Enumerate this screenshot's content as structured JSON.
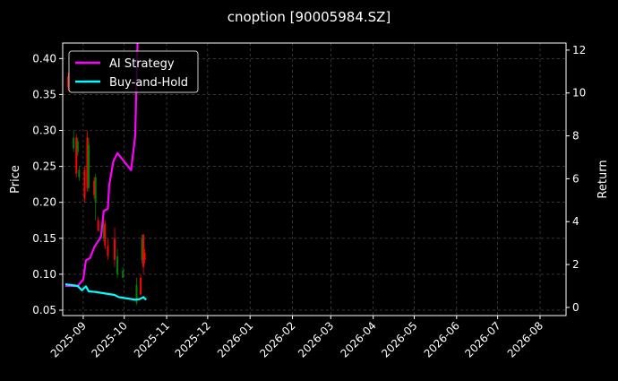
{
  "chart_data": {
    "type": "candlestick+line",
    "title": "cnoption [90005984.SZ]",
    "ylabel": "Price",
    "ylabel_right": "Return",
    "xlim": [
      "2025-08-17",
      "2026-08-20"
    ],
    "ylim": [
      0.0425,
      0.4216
    ],
    "ylim_right": [
      -0.38,
      12.33
    ],
    "grid": true,
    "legend": "top-left",
    "x_ticks": [
      "2025-09",
      "2025-10",
      "2025-11",
      "2025-12",
      "2026-01",
      "2026-02",
      "2026-03",
      "2026-04",
      "2026-05",
      "2026-06",
      "2026-07",
      "2026-08"
    ],
    "y_ticks": [
      "0.05",
      "0.10",
      "0.15",
      "0.20",
      "0.25",
      "0.30",
      "0.35",
      "0.40"
    ],
    "y_ticks_right": [
      "0",
      "2",
      "4",
      "6",
      "8",
      "10",
      "12"
    ],
    "candles": [
      {
        "date": "2025-08-21",
        "open": 0.375,
        "high": 0.38,
        "low": 0.355,
        "close": 0.36
      },
      {
        "date": "2025-08-25",
        "open": 0.275,
        "high": 0.3,
        "low": 0.27,
        "close": 0.29
      },
      {
        "date": "2025-08-27",
        "open": 0.29,
        "high": 0.295,
        "low": 0.235,
        "close": 0.24
      },
      {
        "date": "2025-08-28",
        "open": 0.27,
        "high": 0.29,
        "low": 0.265,
        "close": 0.285
      },
      {
        "date": "2025-08-29",
        "open": 0.235,
        "high": 0.25,
        "low": 0.23,
        "close": 0.245
      },
      {
        "date": "2025-09-02",
        "open": 0.245,
        "high": 0.25,
        "low": 0.2,
        "close": 0.205
      },
      {
        "date": "2025-09-04",
        "open": 0.29,
        "high": 0.3,
        "low": 0.215,
        "close": 0.22
      },
      {
        "date": "2025-09-05",
        "open": 0.22,
        "high": 0.29,
        "low": 0.215,
        "close": 0.28
      },
      {
        "date": "2025-09-09",
        "open": 0.23,
        "high": 0.235,
        "low": 0.205,
        "close": 0.21
      },
      {
        "date": "2025-09-10",
        "open": 0.2,
        "high": 0.24,
        "low": 0.175,
        "close": 0.235
      },
      {
        "date": "2025-09-12",
        "open": 0.175,
        "high": 0.18,
        "low": 0.16,
        "close": 0.16
      },
      {
        "date": "2025-09-16",
        "open": 0.15,
        "high": 0.175,
        "low": 0.145,
        "close": 0.17
      },
      {
        "date": "2025-09-17",
        "open": 0.17,
        "high": 0.175,
        "low": 0.135,
        "close": 0.14
      },
      {
        "date": "2025-09-19",
        "open": 0.14,
        "high": 0.15,
        "low": 0.12,
        "close": 0.125
      },
      {
        "date": "2025-09-24",
        "open": 0.15,
        "high": 0.165,
        "low": 0.11,
        "close": 0.12
      },
      {
        "date": "2025-09-26",
        "open": 0.1,
        "high": 0.135,
        "low": 0.095,
        "close": 0.125
      },
      {
        "date": "2025-09-30",
        "open": 0.095,
        "high": 0.11,
        "low": 0.095,
        "close": 0.105
      },
      {
        "date": "2025-10-10",
        "open": 0.06,
        "high": 0.095,
        "low": 0.057,
        "close": 0.085
      },
      {
        "date": "2025-10-13",
        "open": 0.095,
        "high": 0.1,
        "low": 0.07,
        "close": 0.072
      },
      {
        "date": "2025-10-14",
        "open": 0.12,
        "high": 0.155,
        "low": 0.115,
        "close": 0.15
      },
      {
        "date": "2025-10-15",
        "open": 0.155,
        "high": 0.156,
        "low": 0.1,
        "close": 0.11
      },
      {
        "date": "2025-10-16",
        "open": 0.13,
        "high": 0.135,
        "low": 0.115,
        "close": 0.12
      }
    ],
    "series": [
      {
        "name": "AI Strategy",
        "color": "#ff00ff",
        "points": [
          [
            "2025-08-19",
            1.0
          ],
          [
            "2025-08-28",
            1.0
          ],
          [
            "2025-09-01",
            1.3
          ],
          [
            "2025-09-03",
            2.2
          ],
          [
            "2025-09-06",
            2.3
          ],
          [
            "2025-09-09",
            2.8
          ],
          [
            "2025-09-14",
            3.3
          ],
          [
            "2025-09-16",
            4.5
          ],
          [
            "2025-09-19",
            4.6
          ],
          [
            "2025-09-20",
            5.7
          ],
          [
            "2025-09-23",
            6.8
          ],
          [
            "2025-09-26",
            7.2
          ],
          [
            "2025-10-06",
            6.4
          ],
          [
            "2025-10-09",
            8.0
          ],
          [
            "2025-10-11",
            13.0
          ]
        ]
      },
      {
        "name": "Buy-and-Hold",
        "color": "#00ffff",
        "points": [
          [
            "2025-08-19",
            1.08
          ],
          [
            "2025-08-28",
            1.0
          ],
          [
            "2025-08-31",
            0.8
          ],
          [
            "2025-09-03",
            0.98
          ],
          [
            "2025-09-05",
            0.75
          ],
          [
            "2025-09-10",
            0.72
          ],
          [
            "2025-09-17",
            0.65
          ],
          [
            "2025-09-24",
            0.58
          ],
          [
            "2025-09-27",
            0.48
          ],
          [
            "2025-10-03",
            0.42
          ],
          [
            "2025-10-09",
            0.36
          ],
          [
            "2025-10-12",
            0.38
          ],
          [
            "2025-10-15",
            0.48
          ],
          [
            "2025-10-17",
            0.35
          ]
        ]
      }
    ],
    "up_color": "#008000",
    "down_color": "#ff0000"
  }
}
